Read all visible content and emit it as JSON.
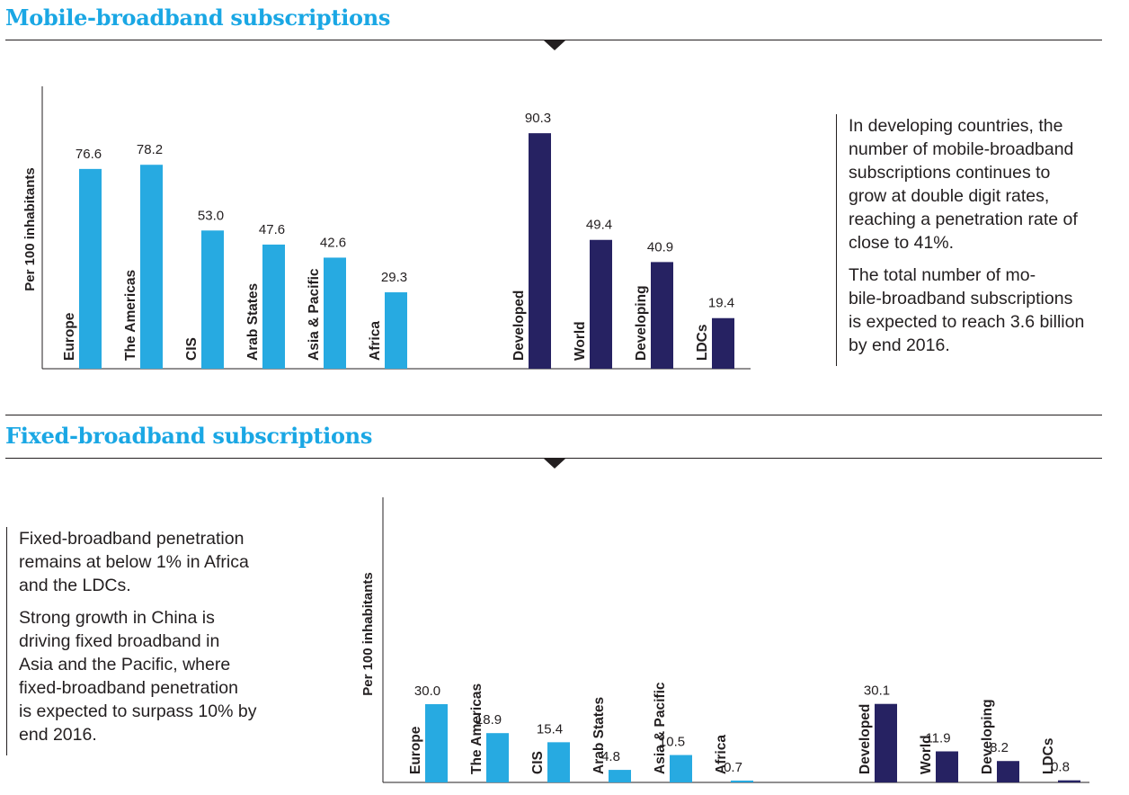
{
  "colors": {
    "accent": "#1aa7e4",
    "region_bar": "#27aae1",
    "group_bar": "#262262",
    "text": "#231f20"
  },
  "mobile": {
    "title": "Mobile-broadband subscriptions",
    "note": [
      "In developing countries, the\nnumber of mobile-broadband\nsubscriptions continues to\ngrow at double digit rates,\nreaching a penetration rate of\nclose to 41%.",
      "The total number of mo-\nbile-broadband subscriptions\nis expected to reach 3.6 billion\nby end 2016."
    ]
  },
  "fixed": {
    "title": "Fixed-broadband subscriptions",
    "note": [
      "Fixed-broadband penetration\nremains at below 1% in Africa\nand the LDCs.",
      "Strong growth in China is\ndriving fixed broadband in\nAsia and the Pacific, where\nfixed-broadband penetration\nis expected to surpass 10% by\nend 2016."
    ]
  },
  "chart_data": [
    {
      "type": "bar",
      "title": "Mobile-broadband subscriptions",
      "ylabel": "Per 100 inhabitants",
      "ylim": [
        0,
        100
      ],
      "categories": [
        "Europe",
        "The Americas",
        "CIS",
        "Arab States",
        "Asia & Pacific",
        "Africa",
        "Developed",
        "World",
        "Developing",
        "LDCs"
      ],
      "values": [
        76.6,
        78.2,
        53.0,
        47.6,
        42.6,
        29.3,
        90.3,
        49.4,
        40.9,
        19.4
      ],
      "value_labels": [
        "76.6",
        "78.2",
        "53.0",
        "47.6",
        "42.6",
        "29.3",
        "90.3",
        "49.4",
        "40.9",
        "19.4"
      ],
      "groups": [
        "region",
        "region",
        "region",
        "region",
        "region",
        "region",
        "group",
        "group",
        "group",
        "group"
      ],
      "grid": false
    },
    {
      "type": "bar",
      "title": "Fixed-broadband subscriptions",
      "ylabel": "Per 100 inhabitants",
      "ylim": [
        0,
        100
      ],
      "categories": [
        "Europe",
        "The Americas",
        "CIS",
        "Arab States",
        "Asia & Pacific",
        "Africa",
        "Developed",
        "World",
        "Developing",
        "LDCs"
      ],
      "values": [
        30.0,
        18.9,
        15.4,
        4.8,
        10.5,
        0.7,
        30.1,
        11.9,
        8.2,
        0.8
      ],
      "value_labels": [
        "30.0",
        "18.9",
        "15.4",
        "4.8",
        "10.5",
        "0.7",
        "30.1",
        "11.9",
        "8.2",
        "0.8"
      ],
      "groups": [
        "region",
        "region",
        "region",
        "region",
        "region",
        "region",
        "group",
        "group",
        "group",
        "group"
      ],
      "grid": false
    }
  ]
}
